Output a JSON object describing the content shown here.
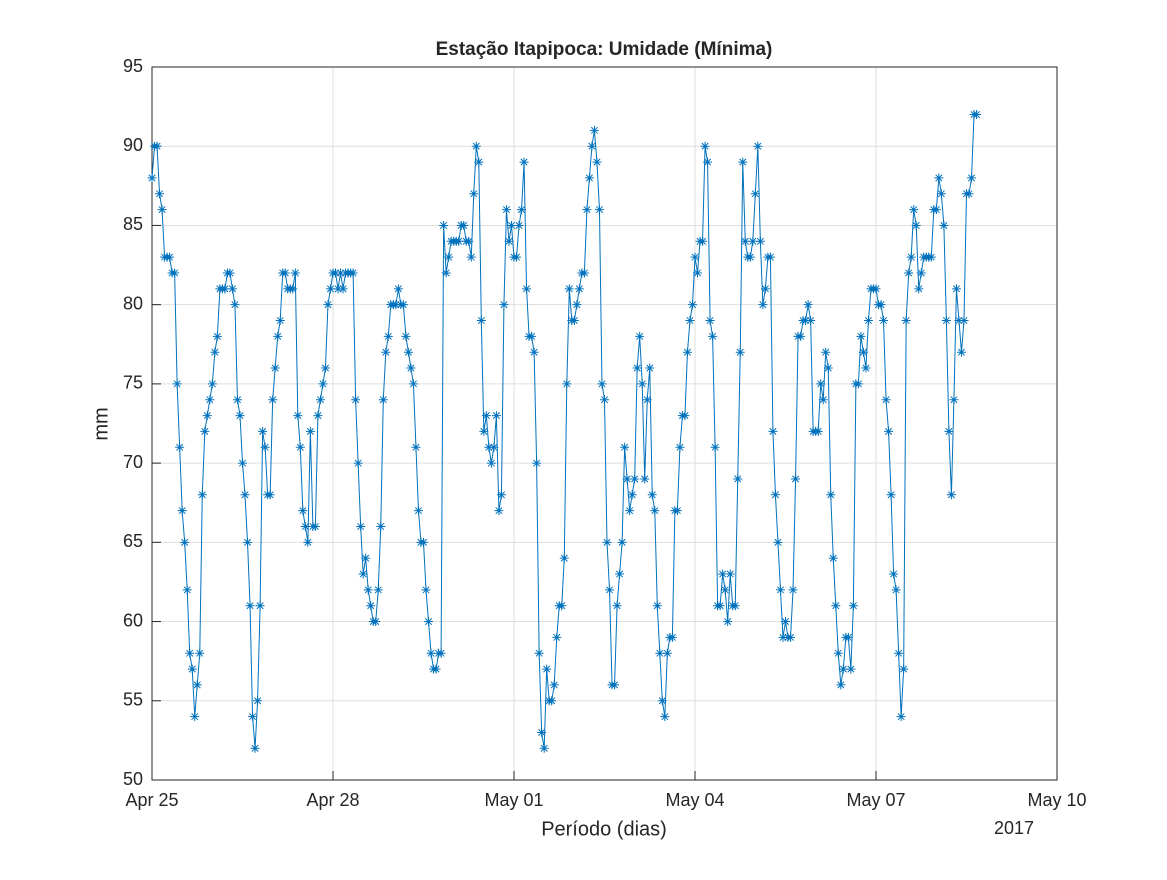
{
  "chart_data": {
    "type": "line",
    "title": "Estação Itapipoca: Umidade (Mínima)",
    "xlabel": "Período (dias)",
    "ylabel": "mm",
    "annotation": "2017",
    "grid": true,
    "marker": "asterisk",
    "xlim": [
      0,
      360
    ],
    "xticks": [
      {
        "value": 0,
        "label": "Apr 25"
      },
      {
        "value": 72,
        "label": "Apr 28"
      },
      {
        "value": 144,
        "label": "May 01"
      },
      {
        "value": 216,
        "label": "May 04"
      },
      {
        "value": 288,
        "label": "May 07"
      },
      {
        "value": 360,
        "label": "May 10"
      }
    ],
    "ylim": [
      50,
      95
    ],
    "yticks": [
      50,
      55,
      60,
      65,
      70,
      75,
      80,
      85,
      90,
      95
    ],
    "x": [
      0,
      1,
      2,
      3,
      4,
      5,
      6,
      7,
      8,
      9,
      10,
      11,
      12,
      13,
      14,
      15,
      16,
      17,
      18,
      19,
      20,
      21,
      22,
      23,
      24,
      25,
      26,
      27,
      28,
      29,
      30,
      31,
      32,
      33,
      34,
      35,
      36,
      37,
      38,
      39,
      40,
      41,
      42,
      43,
      44,
      45,
      46,
      47,
      48,
      49,
      50,
      51,
      52,
      53,
      54,
      55,
      56,
      57,
      58,
      59,
      60,
      61,
      62,
      63,
      64,
      65,
      66,
      67,
      68,
      69,
      70,
      71,
      72,
      73,
      74,
      75,
      76,
      77,
      78,
      79,
      80,
      81,
      82,
      83,
      84,
      85,
      86,
      87,
      88,
      89,
      90,
      91,
      92,
      93,
      94,
      95,
      96,
      97,
      98,
      99,
      100,
      101,
      102,
      103,
      104,
      105,
      106,
      107,
      108,
      109,
      110,
      111,
      112,
      113,
      114,
      115,
      116,
      117,
      118,
      119,
      120,
      121,
      122,
      123,
      124,
      125,
      126,
      127,
      128,
      129,
      130,
      131,
      132,
      133,
      134,
      135,
      136,
      137,
      138,
      139,
      140,
      141,
      142,
      143,
      144,
      145,
      146,
      147,
      148,
      149,
      150,
      151,
      152,
      153,
      154,
      155,
      156,
      157,
      158,
      159,
      160,
      161,
      162,
      163,
      164,
      165,
      166,
      167,
      168,
      169,
      170,
      171,
      172,
      173,
      174,
      175,
      176,
      177,
      178,
      179,
      180,
      181,
      182,
      183,
      184,
      185,
      186,
      187,
      188,
      189,
      190,
      191,
      192,
      193,
      194,
      195,
      196,
      197,
      198,
      199,
      200,
      201,
      202,
      203,
      204,
      205,
      206,
      207,
      208,
      209,
      210,
      211,
      212,
      213,
      214,
      215,
      216,
      217,
      218,
      219,
      220,
      221,
      222,
      223,
      224,
      225,
      226,
      227,
      228,
      229,
      230,
      231,
      232,
      233,
      234,
      235,
      236,
      237,
      238,
      239,
      240,
      241,
      242,
      243,
      244,
      245,
      246,
      247,
      248,
      249,
      250,
      251,
      252,
      253,
      254,
      255,
      256,
      257,
      258,
      259,
      260,
      261,
      262,
      263,
      264,
      265,
      266,
      267,
      268,
      269,
      270,
      271,
      272,
      273,
      274,
      275,
      276,
      277,
      278,
      279,
      280,
      281,
      282,
      283,
      284,
      285,
      286,
      287,
      288,
      289,
      290,
      291,
      292,
      293,
      294,
      295,
      296,
      297,
      298,
      299,
      300,
      301,
      302,
      303,
      304,
      305,
      306,
      307,
      308,
      309,
      310,
      311,
      312,
      313,
      314,
      315,
      316,
      317,
      318,
      319,
      320,
      321,
      322,
      323,
      324,
      325,
      326,
      327,
      328
    ],
    "series": [
      {
        "color": "#0072bd",
        "values": [
          88,
          90,
          90,
          87,
          86,
          83,
          83,
          83,
          82,
          82,
          75,
          71,
          67,
          65,
          62,
          58,
          57,
          54,
          56,
          58,
          68,
          72,
          73,
          74,
          75,
          77,
          78,
          81,
          81,
          81,
          82,
          82,
          81,
          80,
          74,
          73,
          70,
          68,
          65,
          61,
          54,
          52,
          55,
          61,
          72,
          71,
          68,
          68,
          74,
          76,
          78,
          79,
          82,
          82,
          81,
          81,
          81,
          82,
          73,
          71,
          67,
          66,
          65,
          72,
          66,
          66,
          73,
          74,
          75,
          76,
          80,
          81,
          82,
          82,
          81,
          82,
          81,
          82,
          82,
          82,
          82,
          74,
          70,
          66,
          63,
          64,
          62,
          61,
          60,
          60,
          62,
          66,
          74,
          77,
          78,
          80,
          80,
          80,
          81,
          80,
          80,
          78,
          77,
          76,
          75,
          71,
          67,
          65,
          65,
          62,
          60,
          58,
          57,
          57,
          58,
          58,
          85,
          82,
          83,
          84,
          84,
          84,
          84,
          85,
          85,
          84,
          84,
          83,
          87,
          90,
          89,
          79,
          72,
          73,
          71,
          70,
          71,
          73,
          67,
          68,
          80,
          86,
          84,
          85,
          83,
          83,
          85,
          86,
          89,
          81,
          78,
          78,
          77,
          70,
          58,
          53,
          52,
          57,
          55,
          55,
          56,
          59,
          61,
          61,
          64,
          75,
          81,
          79,
          79,
          80,
          81,
          82,
          82,
          86,
          88,
          90,
          91,
          89,
          86,
          75,
          74,
          65,
          62,
          56,
          56,
          61,
          63,
          65,
          71,
          69,
          67,
          68,
          69,
          76,
          78,
          75,
          69,
          74,
          76,
          68,
          67,
          61,
          58,
          55,
          54,
          58,
          59,
          59,
          67,
          67,
          71,
          73,
          73,
          77,
          79,
          80,
          83,
          82,
          84,
          84,
          90,
          89,
          79,
          78,
          71,
          61,
          61,
          63,
          62,
          60,
          63,
          61,
          61,
          69,
          77,
          89,
          84,
          83,
          83,
          84,
          87,
          90,
          84,
          80,
          81,
          83,
          83,
          72,
          68,
          65,
          62,
          59,
          60,
          59,
          59,
          62,
          69,
          78,
          78,
          79,
          79,
          80,
          79,
          72,
          72,
          72,
          75,
          74,
          77,
          76,
          68,
          64,
          61,
          58,
          56,
          57,
          59,
          59,
          57,
          61,
          75,
          75,
          78,
          77,
          76,
          79,
          81,
          81,
          81,
          80,
          80,
          79,
          74,
          72,
          68,
          63,
          62,
          58,
          54,
          57,
          79,
          82,
          83,
          86,
          85,
          81,
          82,
          83,
          83,
          83,
          83,
          86,
          86,
          88,
          87,
          85,
          79,
          72,
          68,
          74,
          81,
          79,
          77,
          79,
          87,
          87,
          88,
          92,
          92
        ]
      }
    ]
  }
}
